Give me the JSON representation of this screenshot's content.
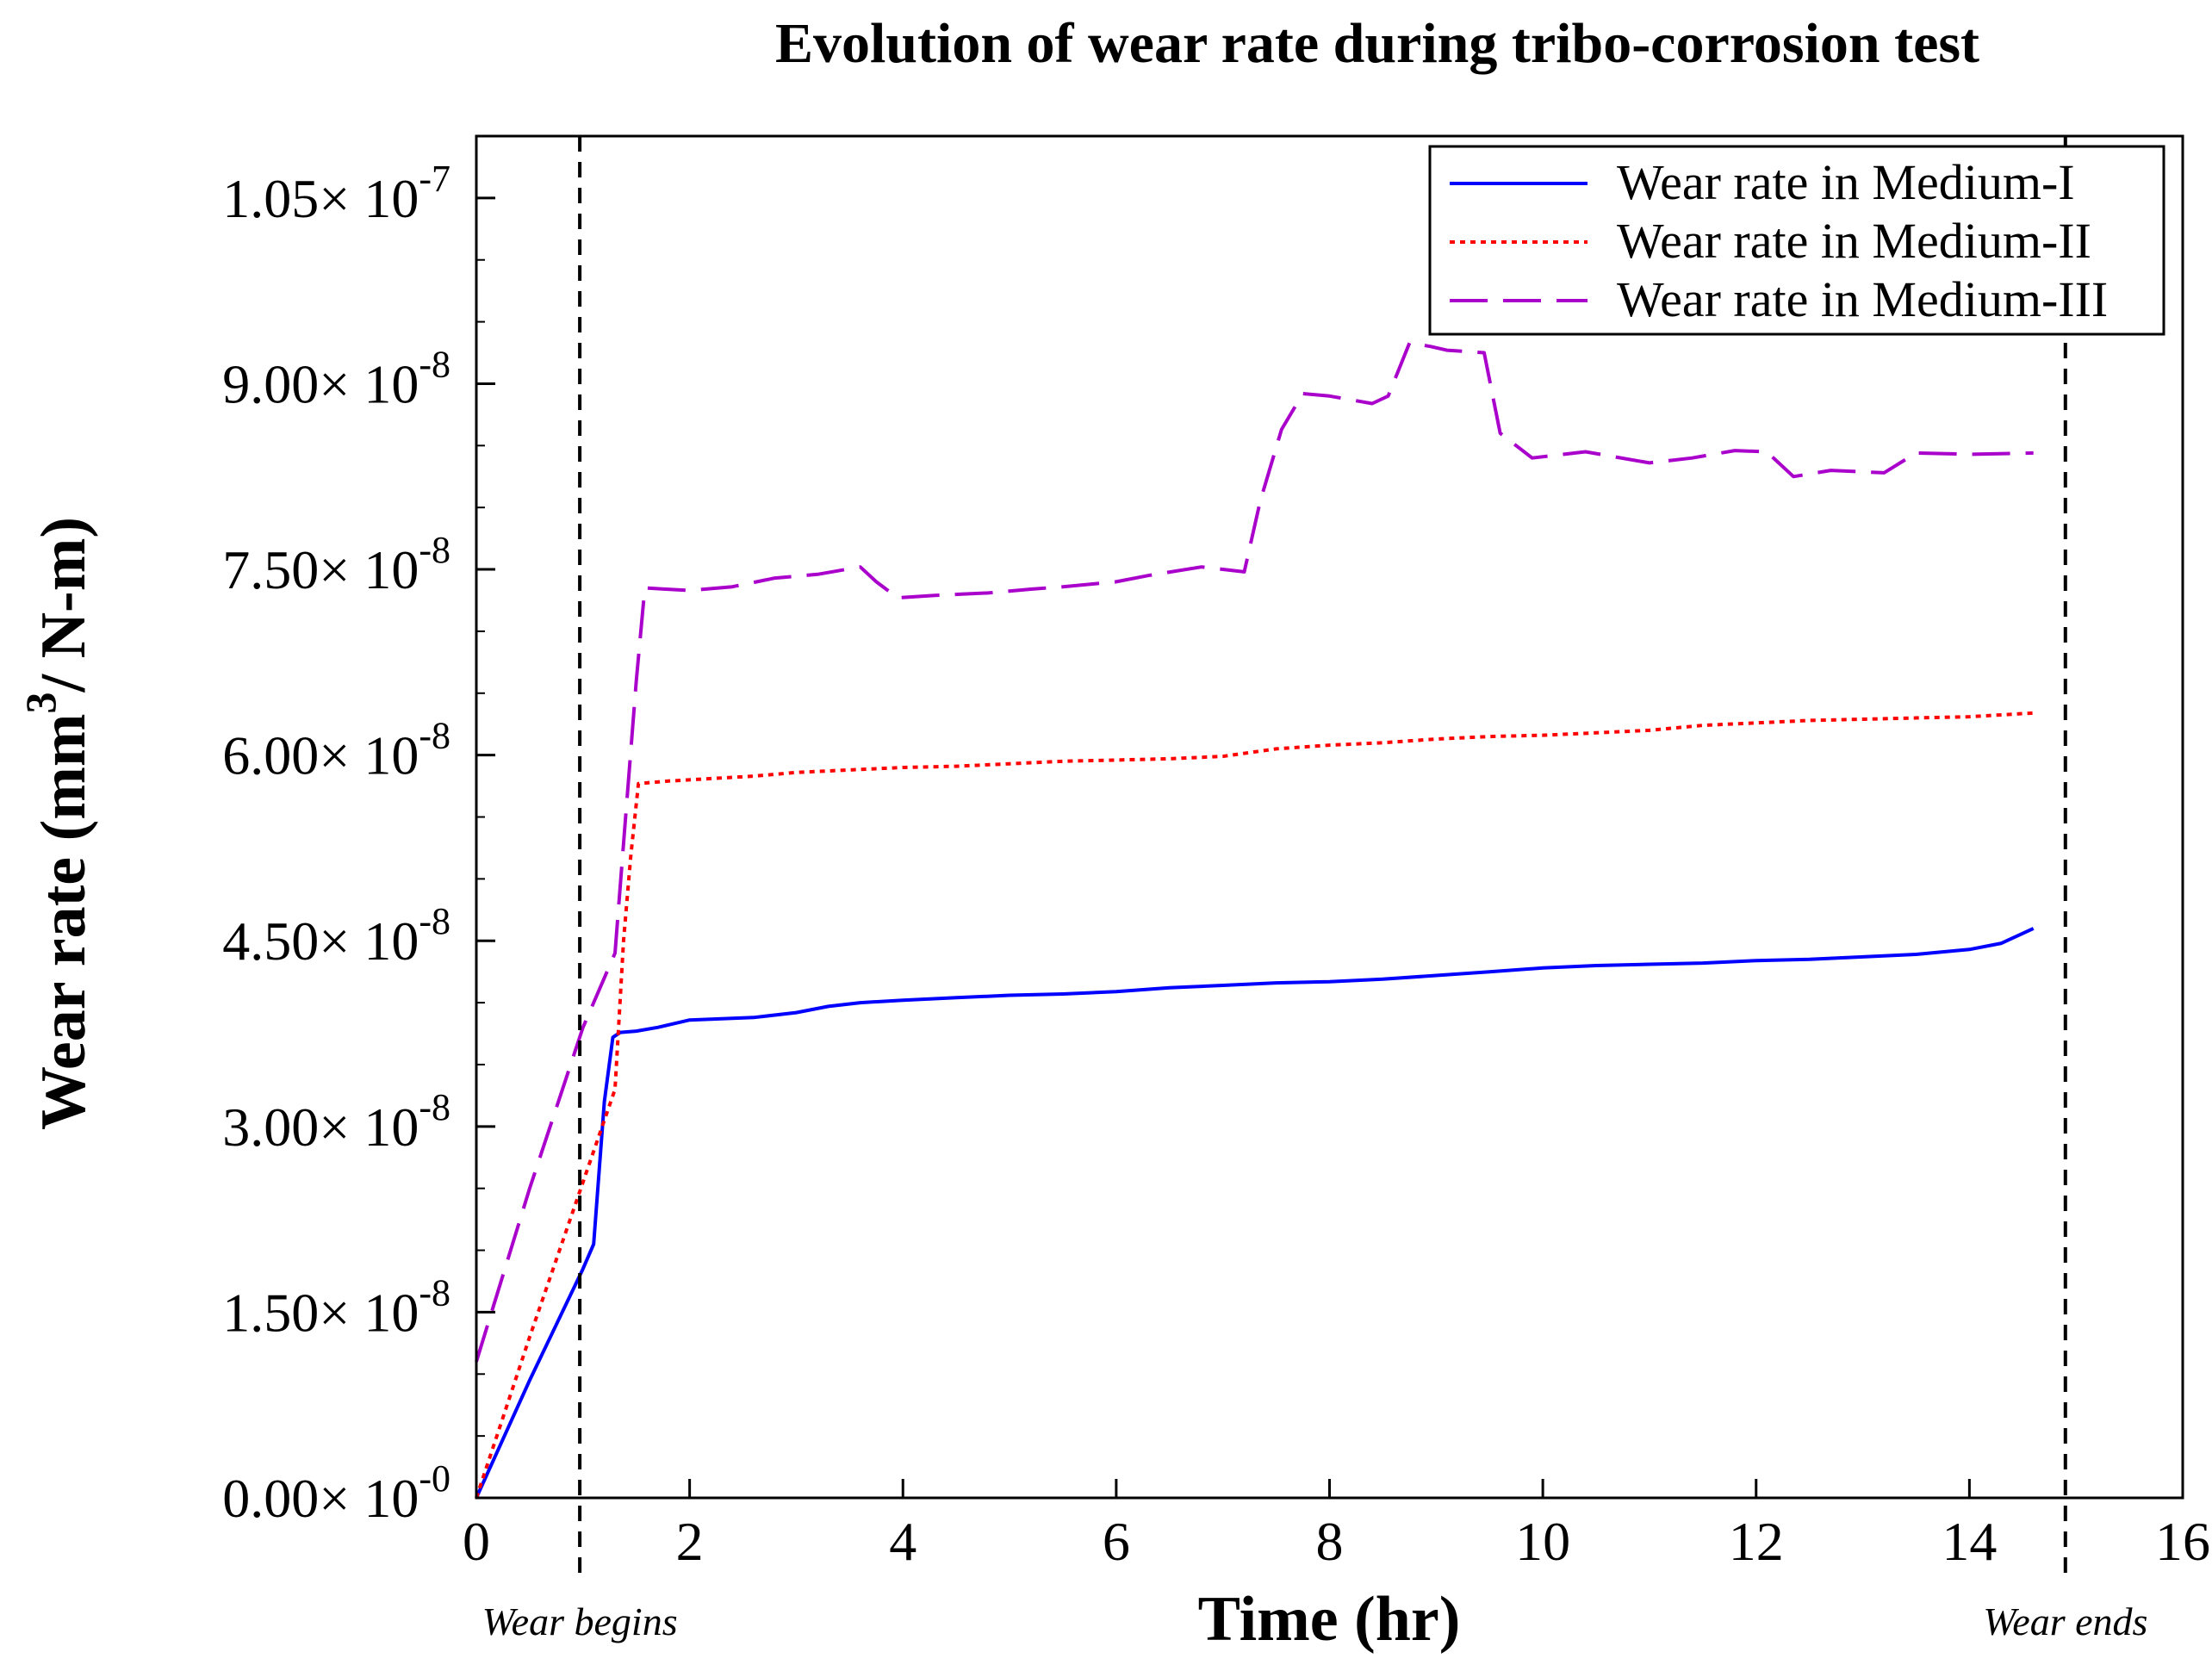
{
  "chart_data": {
    "type": "line",
    "title": "Evolution of wear rate during tribo-corrosion test",
    "xlabel": "Time (hr)",
    "ylabel": {
      "prefix": "Wear rate (mm",
      "superscript": "3",
      "suffix": "/ N-m)"
    },
    "xlim": [
      0,
      16
    ],
    "ylim": [
      0,
      1.1e-07
    ],
    "x_ticks": [
      0,
      2,
      4,
      6,
      8,
      10,
      12,
      14,
      16
    ],
    "x_tick_labels": [
      "0",
      "2",
      "4",
      "6",
      "8",
      "10",
      "12",
      "14",
      "16"
    ],
    "y_ticks": [
      {
        "value": 0,
        "mantissa": "0.00",
        "exponent": "-0"
      },
      {
        "value": 1.5e-08,
        "mantissa": "1.50",
        "exponent": "-8"
      },
      {
        "value": 3e-08,
        "mantissa": "3.00",
        "exponent": "-8"
      },
      {
        "value": 4.5e-08,
        "mantissa": "4.50",
        "exponent": "-8"
      },
      {
        "value": 6e-08,
        "mantissa": "6.00",
        "exponent": "-8"
      },
      {
        "value": 7.5e-08,
        "mantissa": "7.50",
        "exponent": "-8"
      },
      {
        "value": 9e-08,
        "mantissa": "9.00",
        "exponent": "-8"
      },
      {
        "value": 1.05e-07,
        "mantissa": "1.05",
        "exponent": "-7"
      }
    ],
    "y_tick_base": "10",
    "y_minor_step": 5e-09,
    "legend_position": "top-right",
    "series": [
      {
        "name": "Wear rate in Medium-I",
        "color": "#0000ff",
        "style": "solid",
        "x": [
          0,
          0.5,
          1.0,
          1.1,
          1.2,
          1.28,
          1.35,
          1.5,
          1.7,
          2.0,
          2.3,
          2.6,
          3.0,
          3.3,
          3.6,
          4.0,
          4.5,
          5.0,
          5.5,
          6.0,
          6.5,
          7.0,
          7.5,
          8.0,
          8.5,
          9.0,
          9.5,
          10.0,
          10.5,
          11.0,
          11.5,
          12.0,
          12.5,
          13.0,
          13.5,
          14.0,
          14.3,
          14.6
        ],
        "y": [
          0,
          9.5e-09,
          1.85e-08,
          2.05e-08,
          3.2e-08,
          3.72e-08,
          3.76e-08,
          3.77e-08,
          3.8e-08,
          3.86e-08,
          3.87e-08,
          3.88e-08,
          3.92e-08,
          3.97e-08,
          4e-08,
          4.02e-08,
          4.04e-08,
          4.06e-08,
          4.07e-08,
          4.09e-08,
          4.12e-08,
          4.14e-08,
          4.16e-08,
          4.17e-08,
          4.19e-08,
          4.22e-08,
          4.25e-08,
          4.28e-08,
          4.3e-08,
          4.31e-08,
          4.32e-08,
          4.34e-08,
          4.35e-08,
          4.37e-08,
          4.39e-08,
          4.43e-08,
          4.48e-08,
          4.6e-08
        ]
      },
      {
        "name": "Wear rate in Medium-II",
        "color": "#ff0000",
        "style": "dotted",
        "x": [
          0,
          0.5,
          1.0,
          1.3,
          1.38,
          1.45,
          1.52,
          1.8,
          2.2,
          2.6,
          3.0,
          3.5,
          4.0,
          4.5,
          5.0,
          5.5,
          6.0,
          6.5,
          7.0,
          7.5,
          8.0,
          8.5,
          9.0,
          9.5,
          10.0,
          10.5,
          11.0,
          11.5,
          12.0,
          12.5,
          13.0,
          13.5,
          14.0,
          14.6
        ],
        "y": [
          0,
          1.3e-08,
          2.55e-08,
          3.3e-08,
          4.5e-08,
          5.2e-08,
          5.77e-08,
          5.79e-08,
          5.81e-08,
          5.83e-08,
          5.86e-08,
          5.88e-08,
          5.9e-08,
          5.91e-08,
          5.93e-08,
          5.95e-08,
          5.96e-08,
          5.97e-08,
          5.99e-08,
          6.05e-08,
          6.08e-08,
          6.1e-08,
          6.13e-08,
          6.15e-08,
          6.16e-08,
          6.18e-08,
          6.2e-08,
          6.24e-08,
          6.26e-08,
          6.28e-08,
          6.29e-08,
          6.3e-08,
          6.31e-08,
          6.34e-08
        ]
      },
      {
        "name": "Wear rate in Medium-III",
        "color": "#aa00cc",
        "style": "dashed",
        "x": [
          0,
          0.5,
          1.0,
          1.3,
          1.4,
          1.5,
          1.58,
          2.0,
          2.4,
          2.8,
          3.2,
          3.6,
          3.75,
          3.95,
          4.3,
          4.8,
          5.2,
          5.5,
          6.0,
          6.3,
          6.8,
          7.2,
          7.35,
          7.55,
          7.75,
          8.0,
          8.4,
          8.55,
          8.75,
          8.95,
          9.1,
          9.45,
          9.6,
          9.9,
          10.4,
          11.0,
          11.4,
          11.8,
          12.1,
          12.35,
          12.7,
          13.2,
          13.5,
          14.0,
          14.6
        ],
        "y": [
          1.1e-08,
          2.5e-08,
          3.8e-08,
          4.4e-08,
          5.5e-08,
          6.6e-08,
          7.35e-08,
          7.33e-08,
          7.36e-08,
          7.43e-08,
          7.46e-08,
          7.52e-08,
          7.4e-08,
          7.27e-08,
          7.29e-08,
          7.31e-08,
          7.34e-08,
          7.36e-08,
          7.4e-08,
          7.45e-08,
          7.52e-08,
          7.48e-08,
          8.05e-08,
          8.63e-08,
          8.92e-08,
          8.9e-08,
          8.84e-08,
          8.9e-08,
          9.33e-08,
          9.3e-08,
          9.27e-08,
          9.25e-08,
          8.6e-08,
          8.4e-08,
          8.45e-08,
          8.36e-08,
          8.4e-08,
          8.46e-08,
          8.45e-08,
          8.25e-08,
          8.3e-08,
          8.28e-08,
          8.44e-08,
          8.43e-08,
          8.44e-08
        ]
      }
    ],
    "vertical_markers": [
      {
        "x": 0.97,
        "label": "Wear begins"
      },
      {
        "x": 14.9,
        "label": "Wear ends"
      }
    ]
  }
}
